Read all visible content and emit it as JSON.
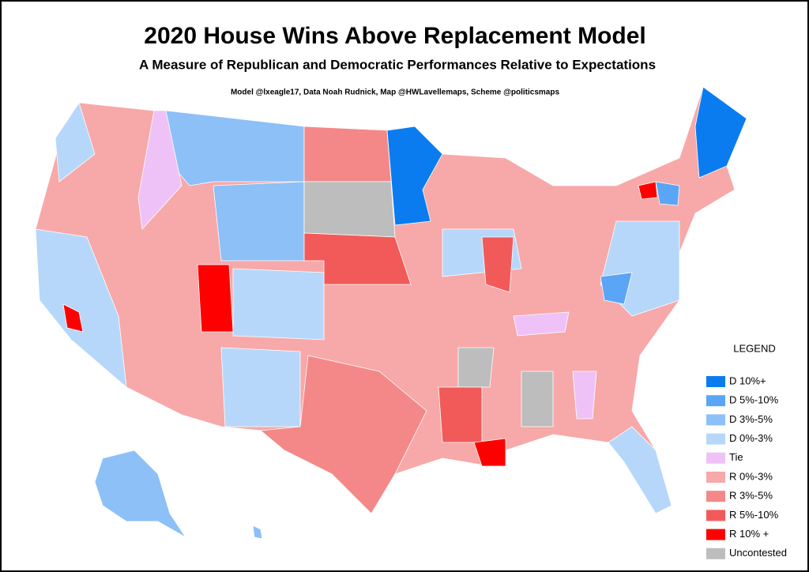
{
  "header": {
    "title": "2020 House Wins Above Replacement Model",
    "subtitle": "A Measure of Republican and Democratic Performances Relative to Expectations",
    "credits": "Model @lxeagle17, Data Noah Rudnick, Map @HWLavellemaps, Scheme @politicsmaps"
  },
  "legend": {
    "title": "LEGEND",
    "items": [
      {
        "label": "D 10%+",
        "color": "#0a7cf0"
      },
      {
        "label": "D 5%-10%",
        "color": "#5aa5f5"
      },
      {
        "label": "D 3%-5%",
        "color": "#8cc0f7"
      },
      {
        "label": "D 0%-3%",
        "color": "#b6d7fa"
      },
      {
        "label": "Tie",
        "color": "#eec2f7"
      },
      {
        "label": "R 0%-3%",
        "color": "#f7a8a8"
      },
      {
        "label": "R 3%-5%",
        "color": "#f48888"
      },
      {
        "label": "R 5%-10%",
        "color": "#f25a5a"
      },
      {
        "label": "R 10% +",
        "color": "#ff0000"
      },
      {
        "label": "Uncontested",
        "color": "#bdbdbd"
      }
    ]
  }
}
